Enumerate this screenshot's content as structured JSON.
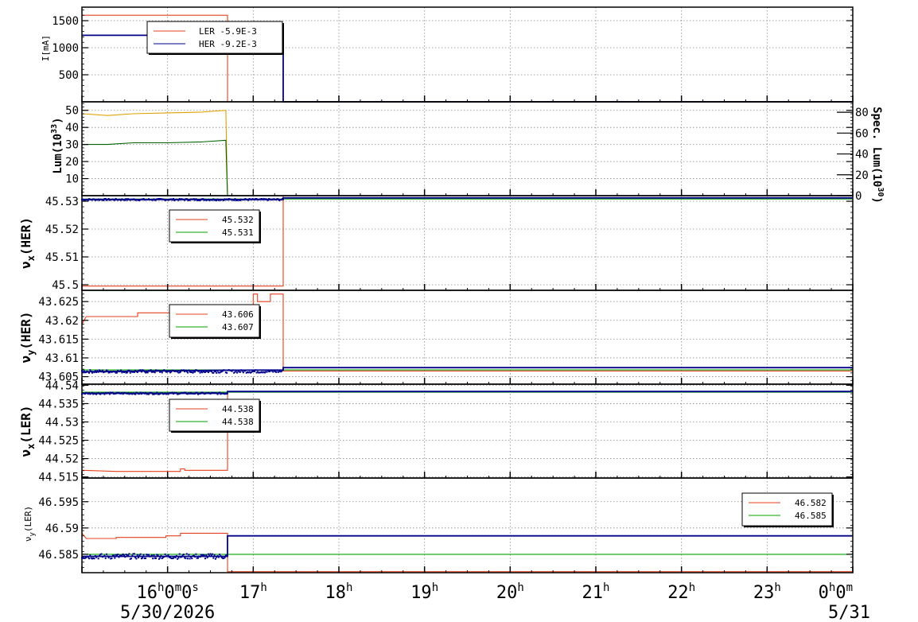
{
  "colors": {
    "red": "#e8401c",
    "blue": "#00008b",
    "green": "#00a000",
    "orange": "#e0a000",
    "darkgreen": "#006400",
    "grid": "#888888"
  },
  "x_axis": {
    "labels": [
      {
        "main": "16",
        "sup": "h",
        "main2": "0",
        "sup2": "m",
        "main3": "0",
        "sup3": "s",
        "time": 16
      },
      {
        "main": "17",
        "sup": "h",
        "time": 17
      },
      {
        "main": "18",
        "sup": "h",
        "time": 18
      },
      {
        "main": "19",
        "sup": "h",
        "time": 19
      },
      {
        "main": "20",
        "sup": "h",
        "time": 20
      },
      {
        "main": "21",
        "sup": "h",
        "time": 21
      },
      {
        "main": "22",
        "sup": "h",
        "time": 22
      },
      {
        "main": "23",
        "sup": "h",
        "time": 23
      },
      {
        "main": "0",
        "sup": "h",
        "main2": "0",
        "sup2": "m",
        "time": 24
      }
    ],
    "date_left": "5/30/2026",
    "date_right": "5/31",
    "range": [
      15.0,
      24.0
    ]
  },
  "chart_data": [
    {
      "type": "line",
      "panel": "current",
      "ylabel": "I[mA]",
      "ylim": [
        0,
        1750
      ],
      "yticks": [
        500,
        1000,
        1500
      ],
      "legend": [
        {
          "text": "LER  -5.9E-3",
          "color": "red"
        },
        {
          "text": "HER  -9.2E-3",
          "color": "blue"
        }
      ],
      "series": [
        {
          "name": "LER",
          "color": "red",
          "points": [
            [
              15.0,
              1600
            ],
            [
              16.7,
              1600
            ],
            [
              16.7,
              0
            ],
            [
              24.0,
              0
            ]
          ]
        },
        {
          "name": "HER",
          "color": "blue",
          "points": [
            [
              15.0,
              1230
            ],
            [
              17.35,
              1230
            ],
            [
              17.35,
              0
            ],
            [
              24.0,
              0
            ]
          ]
        }
      ]
    },
    {
      "type": "line",
      "panel": "luminosity",
      "ylabel": "Lum(10",
      "ylabel_sup": "33",
      "ylabel_end": ")",
      "ylim": [
        0,
        55
      ],
      "yticks": [
        10,
        20,
        30,
        40,
        50
      ],
      "y2label": "Spec. Lum(10",
      "y2label_sup": "30",
      "y2label_end": ")",
      "y2lim": [
        0,
        90
      ],
      "y2ticks": [
        0,
        20,
        40,
        60,
        80
      ],
      "series": [
        {
          "color": "orange",
          "points": [
            [
              15.0,
              48
            ],
            [
              15.3,
              47
            ],
            [
              15.6,
              48
            ],
            [
              16.0,
              48.5
            ],
            [
              16.4,
              49
            ],
            [
              16.68,
              50
            ],
            [
              16.7,
              0
            ]
          ]
        },
        {
          "color": "darkgreen",
          "points": [
            [
              15.0,
              30
            ],
            [
              15.3,
              30
            ],
            [
              15.6,
              31
            ],
            [
              16.0,
              31
            ],
            [
              16.4,
              31.5
            ],
            [
              16.68,
              32.5
            ],
            [
              16.7,
              0
            ]
          ]
        }
      ]
    },
    {
      "type": "line",
      "panel": "nux_her",
      "ylabel": "ν",
      "ylabel_sub": "x",
      "ylabel_end": "(HER)",
      "ylim": [
        45.498,
        45.532
      ],
      "yticks": [
        45.5,
        45.51,
        45.52,
        45.53
      ],
      "ytick_labels": [
        "45.5",
        "45.51",
        "45.52",
        "45.53"
      ],
      "legend": [
        {
          "text": "45.532",
          "color": "red"
        },
        {
          "text": "45.531",
          "color": "green"
        }
      ],
      "series": [
        {
          "color": "red",
          "points": [
            [
              15.0,
              45.4995
            ],
            [
              17.35,
              45.4995
            ],
            [
              17.35,
              45.532
            ],
            [
              24.0,
              45.532
            ]
          ]
        },
        {
          "color": "green",
          "points": [
            [
              15.0,
              45.5308
            ],
            [
              24.0,
              45.5308
            ]
          ]
        },
        {
          "color": "blue",
          "points": [
            [
              15.0,
              45.5306
            ],
            [
              17.35,
              45.5306
            ],
            [
              17.35,
              45.5312
            ],
            [
              24.0,
              45.5312
            ]
          ]
        }
      ]
    },
    {
      "type": "line",
      "panel": "nuy_her",
      "ylabel": "ν",
      "ylabel_sub": "y",
      "ylabel_end": "(HER)",
      "ylim": [
        43.603,
        43.628
      ],
      "yticks": [
        43.605,
        43.61,
        43.615,
        43.62,
        43.625
      ],
      "ytick_labels": [
        "43.605",
        "43.61",
        "43.615",
        "43.62",
        "43.625"
      ],
      "legend": [
        {
          "text": "43.606",
          "color": "red"
        },
        {
          "text": "43.607",
          "color": "green"
        }
      ],
      "series": [
        {
          "color": "red",
          "points": [
            [
              15.0,
              43.619
            ],
            [
              15.05,
              43.621
            ],
            [
              15.65,
              43.621
            ],
            [
              15.65,
              43.622
            ],
            [
              16.7,
              43.622
            ],
            [
              16.7,
              43.623
            ],
            [
              17.0,
              43.623
            ],
            [
              17.0,
              43.627
            ],
            [
              17.05,
              43.627
            ],
            [
              17.05,
              43.625
            ],
            [
              17.2,
              43.625
            ],
            [
              17.2,
              43.627
            ],
            [
              17.35,
              43.627
            ],
            [
              17.35,
              43.6065
            ],
            [
              24.0,
              43.6065
            ]
          ]
        },
        {
          "color": "green",
          "points": [
            [
              15.0,
              43.6068
            ],
            [
              24.0,
              43.6068
            ]
          ]
        },
        {
          "color": "blue",
          "points": [
            [
              15.0,
              43.6063
            ],
            [
              16.6,
              43.6067
            ],
            [
              17.35,
              43.6068
            ],
            [
              17.35,
              43.6074
            ],
            [
              24.0,
              43.6074
            ]
          ]
        }
      ]
    },
    {
      "type": "line",
      "panel": "nux_ler",
      "ylabel": "ν",
      "ylabel_sub": "x",
      "ylabel_end": "(LER)",
      "ylim": [
        44.5147,
        44.5403
      ],
      "yticks": [
        44.515,
        44.52,
        44.525,
        44.53,
        44.535,
        44.54
      ],
      "ytick_labels": [
        "44.515",
        "44.52",
        "44.525",
        "44.53",
        "44.535",
        "44.54"
      ],
      "legend": [
        {
          "text": "44.538",
          "color": "red"
        },
        {
          "text": "44.538",
          "color": "green"
        }
      ],
      "series": [
        {
          "color": "red",
          "points": [
            [
              15.0,
              44.5168
            ],
            [
              15.4,
              44.5165
            ],
            [
              16.15,
              44.5165
            ],
            [
              16.15,
              44.5172
            ],
            [
              16.2,
              44.5172
            ],
            [
              16.2,
              44.5168
            ],
            [
              16.7,
              44.5168
            ],
            [
              16.7,
              44.5383
            ],
            [
              24.0,
              44.5383
            ]
          ]
        },
        {
          "color": "green",
          "points": [
            [
              15.0,
              44.5381
            ],
            [
              24.0,
              44.5381
            ]
          ]
        },
        {
          "color": "blue",
          "points": [
            [
              15.0,
              44.5378
            ],
            [
              16.7,
              44.5378
            ],
            [
              16.7,
              44.5383
            ],
            [
              24.0,
              44.5383
            ]
          ]
        }
      ]
    },
    {
      "type": "line",
      "panel": "nuy_ler",
      "ylabel": "ν",
      "ylabel_sub": "y",
      "ylabel_end": "(LER)",
      "ylim": [
        46.5815,
        46.5995
      ],
      "yticks": [
        46.585,
        46.59,
        46.595
      ],
      "ytick_labels": [
        "46.585",
        "46.59",
        "46.595"
      ],
      "legend": [
        {
          "text": "46.582",
          "color": "red"
        },
        {
          "text": "46.585",
          "color": "green"
        }
      ],
      "series": [
        {
          "color": "red",
          "points": [
            [
              15.0,
              46.589
            ],
            [
              15.05,
              46.588
            ],
            [
              15.4,
              46.588
            ],
            [
              15.4,
              46.5882
            ],
            [
              15.98,
              46.5882
            ],
            [
              15.98,
              46.5885
            ],
            [
              16.15,
              46.5885
            ],
            [
              16.15,
              46.589
            ],
            [
              16.7,
              46.589
            ],
            [
              16.7,
              46.5817
            ],
            [
              24.0,
              46.5817
            ]
          ]
        },
        {
          "color": "green",
          "points": [
            [
              15.0,
              46.585
            ],
            [
              24.0,
              46.585
            ]
          ]
        },
        {
          "color": "blue",
          "points": [
            [
              15.0,
              46.5846
            ],
            [
              16.7,
              46.5846
            ],
            [
              16.7,
              46.5885
            ],
            [
              24.0,
              46.5885
            ]
          ]
        }
      ]
    }
  ]
}
